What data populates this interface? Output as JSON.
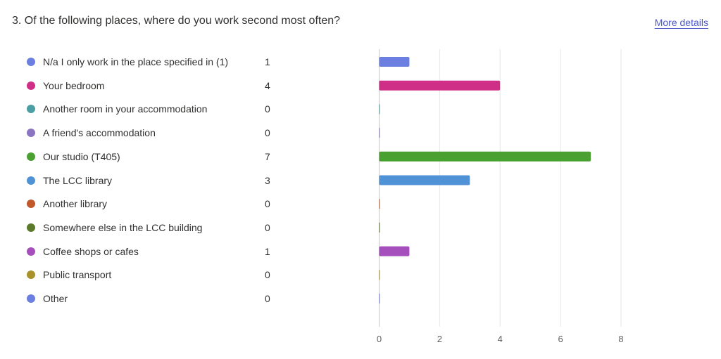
{
  "question": {
    "title": "3. Of the following places, where do you work second most often?",
    "more_details_label": "More details"
  },
  "chart_data": {
    "type": "bar",
    "orientation": "horizontal",
    "categories": [
      "N/a I only work in the place specified in (1)",
      "Your bedroom",
      "Another room in your accommodation",
      "A friend's accommodation",
      "Our studio (T405)",
      "The LCC library",
      "Another library",
      "Somewhere else in the LCC building",
      "Coffee shops or cafes",
      "Public transport",
      "Other"
    ],
    "values": [
      1,
      4,
      0,
      0,
      7,
      3,
      0,
      0,
      1,
      0,
      0
    ],
    "colors": [
      "#6b7fe0",
      "#d02f87",
      "#4b9ea3",
      "#8b74c0",
      "#4aa132",
      "#4f93d6",
      "#c0582a",
      "#5b7a2c",
      "#a44fbb",
      "#a9922a",
      "#6b7fe0"
    ],
    "xlim": [
      0,
      8
    ],
    "xticks": [
      "0",
      "2",
      "4",
      "6",
      "8"
    ],
    "grid": true,
    "legend_placement": "left"
  }
}
